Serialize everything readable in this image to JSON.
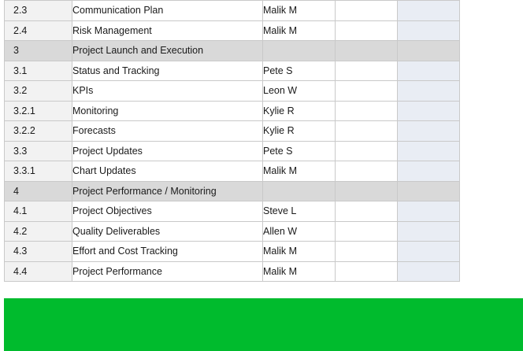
{
  "rows": [
    {
      "id": "2.3",
      "task": "Communication Plan",
      "owner": "Malik M",
      "level": 2
    },
    {
      "id": "2.4",
      "task": "Risk Management",
      "owner": "Malik M",
      "level": 2
    },
    {
      "id": "3",
      "task": "Project Launch and Execution",
      "owner": "",
      "level": 1,
      "section": true
    },
    {
      "id": "3.1",
      "task": "Status and Tracking",
      "owner": "Pete S",
      "level": 2
    },
    {
      "id": "3.2",
      "task": "KPIs",
      "owner": "Leon W",
      "level": 2
    },
    {
      "id": "3.2.1",
      "task": "Monitoring",
      "owner": "Kylie R",
      "level": 3
    },
    {
      "id": "3.2.2",
      "task": "Forecasts",
      "owner": "Kylie R",
      "level": 3
    },
    {
      "id": "3.3",
      "task": "Project Updates",
      "owner": "Pete S",
      "level": 2
    },
    {
      "id": "3.3.1",
      "task": "Chart Updates",
      "owner": "Malik M",
      "level": 3
    },
    {
      "id": "4",
      "task": "Project Performance / Monitoring",
      "owner": "",
      "level": 1,
      "section": true
    },
    {
      "id": "4.1",
      "task": "Project Objectives",
      "owner": "Steve L",
      "level": 2
    },
    {
      "id": "4.2",
      "task": "Quality Deliverables",
      "owner": "Allen W",
      "level": 2
    },
    {
      "id": "4.3",
      "task": "Effort and Cost Tracking",
      "owner": "Malik M",
      "level": 2
    },
    {
      "id": "4.4",
      "task": "Project Performance",
      "owner": "Malik M",
      "level": 2
    }
  ],
  "colors": {
    "section_fill": "#d9d9d9",
    "banner": "#00bb2d"
  }
}
